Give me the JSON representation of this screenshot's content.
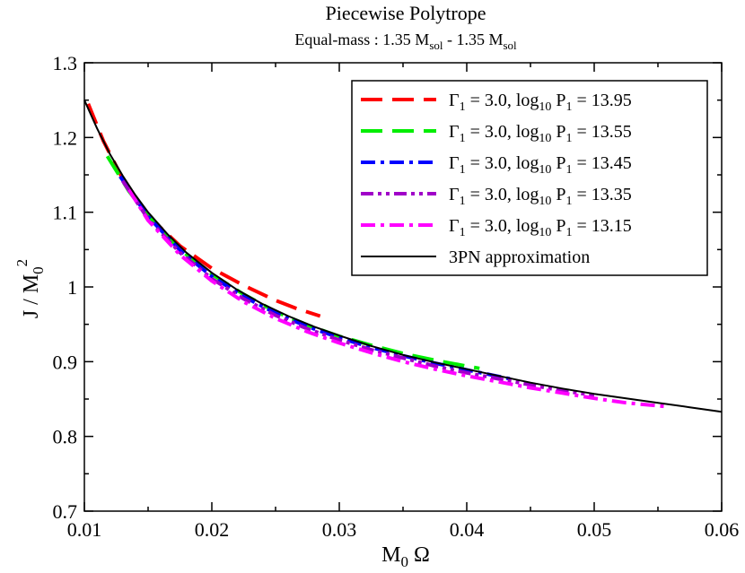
{
  "chart_data": {
    "type": "line",
    "title": "Piecewise Polytrope",
    "subtitle": {
      "prefix": "Equal-mass : 1.35 M",
      "sub1": "sol",
      "middle": " - 1.35 M",
      "sub2": "sol"
    },
    "xlabel": {
      "main": "M",
      "sub": "0",
      "rest": " Ω"
    },
    "ylabel": {
      "main": "J / M",
      "sub": "0",
      "sup": "2"
    },
    "xlim": [
      0.01,
      0.06
    ],
    "ylim": [
      0.7,
      1.3
    ],
    "xticks": [
      0.01,
      0.02,
      0.03,
      0.04,
      0.05,
      0.06
    ],
    "xtick_labels": [
      "0.01",
      "0.02",
      "0.03",
      "0.04",
      "0.05",
      "0.06"
    ],
    "yticks": [
      0.7,
      0.8,
      0.9,
      1.0,
      1.1,
      1.2,
      1.3
    ],
    "ytick_labels": [
      "0.7",
      "0.8",
      "0.9",
      "1",
      "1.1",
      "1.2",
      "1.3"
    ],
    "legend_position": "top-right",
    "series": [
      {
        "name": "Γ1 = 3.0, log10 P1 = 13.95",
        "legend": {
          "gamma": "Γ",
          "gsub": "1",
          "mid": " = 3.0,  log",
          "lsub": "10",
          "p": " P",
          "psub": "1",
          "val": " = 13.95"
        },
        "color": "#ff0000",
        "dash": "long",
        "x": [
          0.0103,
          0.0115,
          0.013,
          0.015,
          0.0175,
          0.02,
          0.0225,
          0.025,
          0.0265,
          0.0285
        ],
        "y": [
          1.245,
          1.195,
          1.145,
          1.095,
          1.055,
          1.025,
          1.002,
          0.982,
          0.972,
          0.961
        ]
      },
      {
        "name": "Γ1 = 3.0, log10 P1 = 13.55",
        "legend": {
          "gamma": "Γ",
          "gsub": "1",
          "mid": " = 3.0,  log",
          "lsub": "10",
          "p": " P",
          "psub": "1",
          "val": " = 13.55"
        },
        "color": "#00ee00",
        "dash": "long",
        "x": [
          0.0118,
          0.0135,
          0.015,
          0.0175,
          0.02,
          0.0225,
          0.025,
          0.0275,
          0.03,
          0.0325,
          0.035,
          0.0375,
          0.04,
          0.041
        ],
        "y": [
          1.175,
          1.128,
          1.095,
          1.05,
          1.017,
          0.99,
          0.967,
          0.949,
          0.934,
          0.922,
          0.911,
          0.902,
          0.894,
          0.891
        ]
      },
      {
        "name": "Γ1 = 3.0, log10 P1 = 13.45",
        "legend": {
          "gamma": "Γ",
          "gsub": "1",
          "mid": " = 3.0,  log",
          "lsub": "10",
          "p": " P",
          "psub": "1",
          "val": " = 13.45"
        },
        "color": "#0000ff",
        "dash": "dashdot",
        "x": [
          0.0128,
          0.015,
          0.0175,
          0.02,
          0.0225,
          0.025,
          0.0275,
          0.03,
          0.0325,
          0.035,
          0.0375,
          0.04,
          0.042,
          0.0437
        ],
        "y": [
          1.148,
          1.094,
          1.049,
          1.014,
          0.987,
          0.965,
          0.947,
          0.932,
          0.919,
          0.908,
          0.898,
          0.889,
          0.882,
          0.876
        ]
      },
      {
        "name": "Γ1 = 3.0, log10 P1 = 13.35",
        "legend": {
          "gamma": "Γ",
          "gsub": "1",
          "mid": " = 3.0,  log",
          "lsub": "10",
          "p": " P",
          "psub": "1",
          "val": " = 13.35"
        },
        "color": "#a000c8",
        "dash": "dashdotdot",
        "x": [
          0.013,
          0.015,
          0.0175,
          0.02,
          0.0225,
          0.025,
          0.0275,
          0.03,
          0.0325,
          0.035,
          0.0375,
          0.04,
          0.0425,
          0.045,
          0.0475,
          0.05
        ],
        "y": [
          1.142,
          1.091,
          1.046,
          1.011,
          0.984,
          0.962,
          0.944,
          0.929,
          0.916,
          0.905,
          0.894,
          0.885,
          0.877,
          0.869,
          0.861,
          0.855
        ]
      },
      {
        "name": "Γ1 = 3.0, log10 P1 = 13.15",
        "legend": {
          "gamma": "Γ",
          "gsub": "1",
          "mid": " = 3.0,  log",
          "lsub": "10",
          "p": " P",
          "psub": "1",
          "val": " = 13.15"
        },
        "color": "#ff00ff",
        "dash": "dashdot",
        "x": [
          0.0135,
          0.015,
          0.0175,
          0.02,
          0.0225,
          0.025,
          0.0275,
          0.03,
          0.0325,
          0.035,
          0.0375,
          0.04,
          0.0425,
          0.045,
          0.0475,
          0.05,
          0.0525,
          0.0556
        ],
        "y": [
          1.13,
          1.089,
          1.043,
          1.008,
          0.98,
          0.958,
          0.94,
          0.925,
          0.912,
          0.9,
          0.89,
          0.881,
          0.873,
          0.865,
          0.858,
          0.851,
          0.845,
          0.84
        ]
      },
      {
        "name": "3PN approximation",
        "legend": {
          "label": "3PN approximation"
        },
        "color": "#000000",
        "dash": "solid",
        "x": [
          0.01,
          0.011,
          0.012,
          0.013,
          0.014,
          0.015,
          0.0165,
          0.018,
          0.02,
          0.022,
          0.024,
          0.026,
          0.028,
          0.03,
          0.0325,
          0.035,
          0.0375,
          0.04,
          0.0425,
          0.045,
          0.0475,
          0.05,
          0.0525,
          0.055,
          0.0575,
          0.06
        ],
        "y": [
          1.25,
          1.212,
          1.178,
          1.149,
          1.123,
          1.1,
          1.071,
          1.046,
          1.019,
          0.996,
          0.977,
          0.961,
          0.947,
          0.935,
          0.921,
          0.909,
          0.899,
          0.89,
          0.881,
          0.872,
          0.864,
          0.857,
          0.851,
          0.845,
          0.839,
          0.833
        ]
      }
    ]
  }
}
